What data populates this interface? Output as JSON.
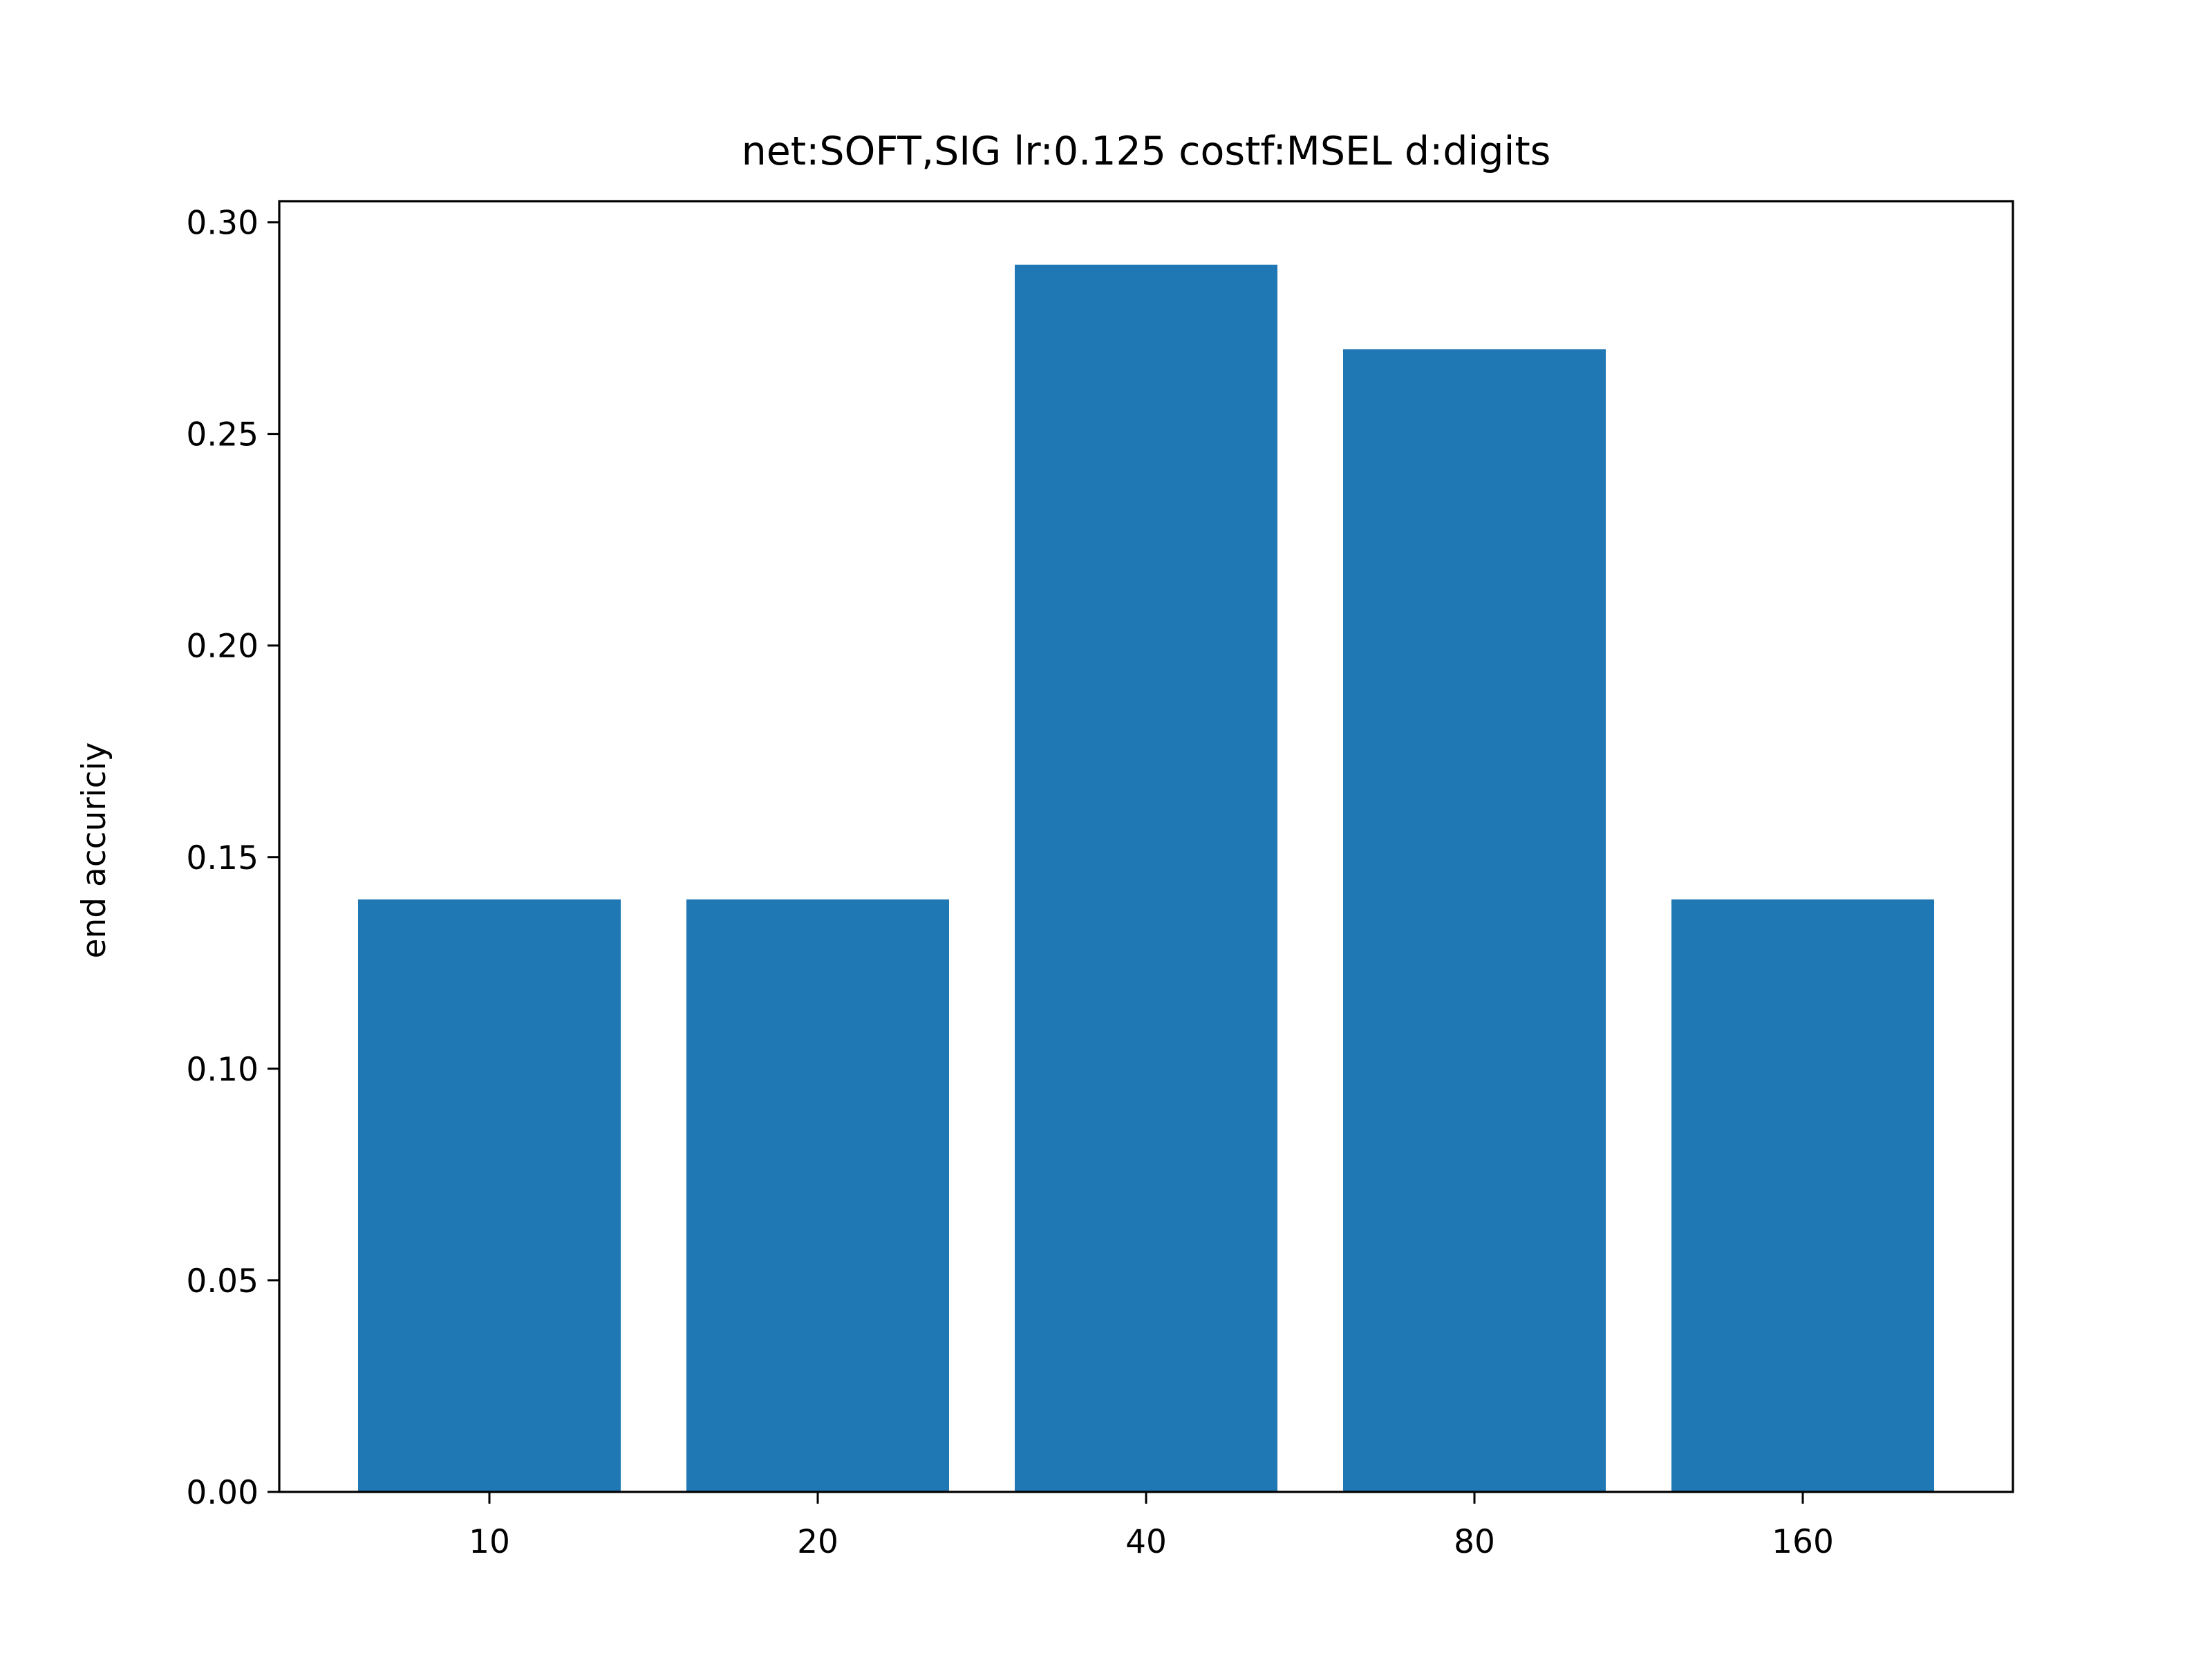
{
  "chart_data": {
    "type": "bar",
    "title": "net:SOFT,SIG lr:0.125 costf:MSEL d:digits",
    "xlabel": "",
    "ylabel": "end accuriciy",
    "categories": [
      "10",
      "20",
      "40",
      "80",
      "160"
    ],
    "values": [
      0.14,
      0.14,
      0.29,
      0.27,
      0.14
    ],
    "ylim": [
      0,
      0.305
    ],
    "yticks": [
      "0.00",
      "0.05",
      "0.10",
      "0.15",
      "0.20",
      "0.25",
      "0.30"
    ],
    "bar_color": "#1f77b4",
    "grid": false,
    "legend": "none"
  }
}
